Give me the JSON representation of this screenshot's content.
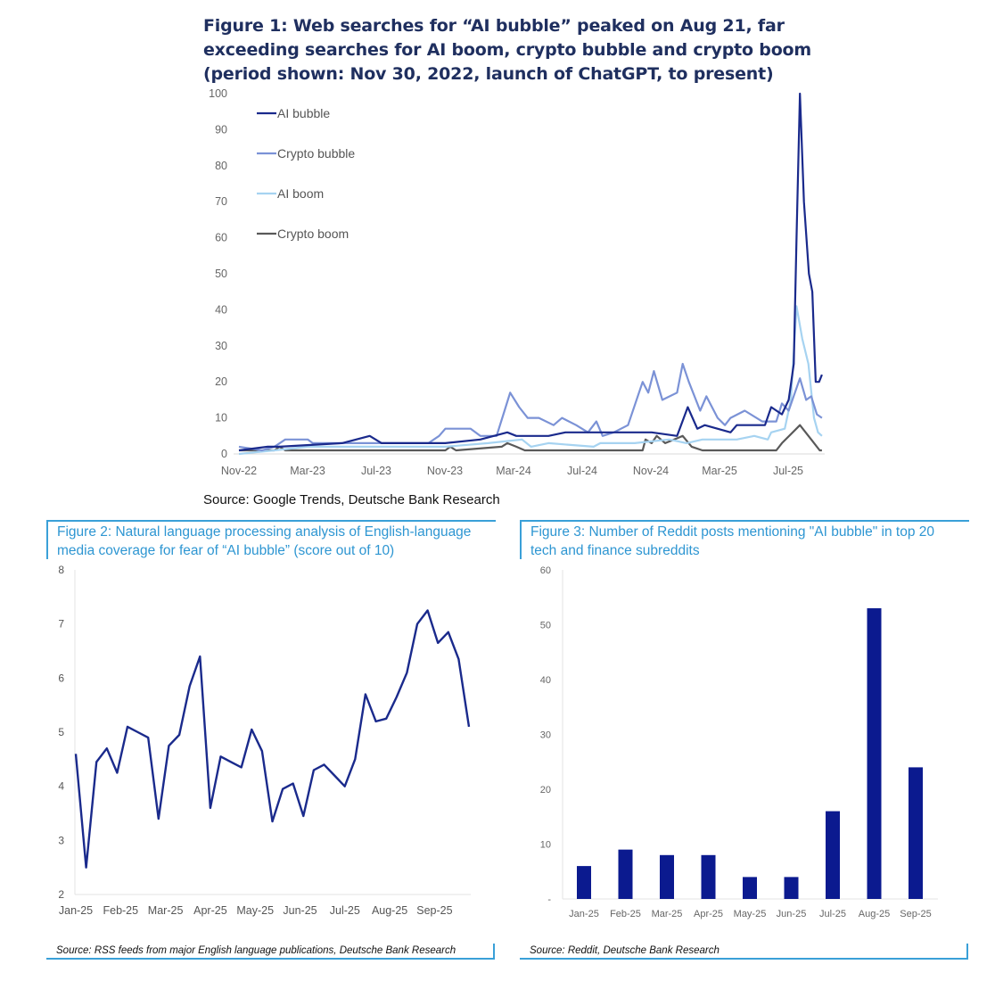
{
  "figure1": {
    "title": "Figure 1: Web searches for “AI bubble” peaked on Aug 21, far exceeding searches for AI boom, crypto bubble and crypto boom (period shown: Nov 30, 2022, launch of ChatGPT, to present)",
    "source": "Source: Google Trends, Deutsche Bank Research"
  },
  "figure2": {
    "title": "Figure 2: Natural language processing analysis of English-language media coverage for fear of “AI bubble” (score out of 10)",
    "source": "Source: RSS feeds from major English language publications, Deutsche Bank Research"
  },
  "figure3": {
    "title": "Figure 3: Number of Reddit posts mentioning \"AI bubble\" in top 20 tech and finance subreddits",
    "source": "Source: Reddit, Deutsche Bank Research"
  },
  "chart_data": [
    {
      "type": "line",
      "ylim": [
        0,
        100
      ],
      "yticks": [
        "0",
        "10",
        "20",
        "30",
        "40",
        "50",
        "60",
        "70",
        "80",
        "90",
        "100"
      ],
      "xticks": [
        "Nov-22",
        "Mar-23",
        "Jul-23",
        "Nov-23",
        "Mar-24",
        "Jul-24",
        "Nov-24",
        "Mar-25",
        "Jul-25"
      ],
      "x_start": "2022-11-30",
      "legend": "top-left",
      "grid": false,
      "series": [
        {
          "name": "AI bubble",
          "color": "#1a2a8c",
          "points": [
            [
              "2022-11-30",
              1
            ],
            [
              "2023-01-20",
              2
            ],
            [
              "2023-02-10",
              2
            ],
            [
              "2023-06-01",
              3
            ],
            [
              "2023-07-20",
              5
            ],
            [
              "2023-08-10",
              3
            ],
            [
              "2023-12-01",
              3
            ],
            [
              "2024-02-01",
              4
            ],
            [
              "2024-03-20",
              6
            ],
            [
              "2024-04-05",
              5
            ],
            [
              "2024-06-01",
              5
            ],
            [
              "2024-07-01",
              6
            ],
            [
              "2024-09-01",
              6
            ],
            [
              "2024-12-01",
              6
            ],
            [
              "2025-01-15",
              5
            ],
            [
              "2025-02-03",
              13
            ],
            [
              "2025-02-20",
              7
            ],
            [
              "2025-03-05",
              8
            ],
            [
              "2025-04-20",
              6
            ],
            [
              "2025-05-01",
              8
            ],
            [
              "2025-06-20",
              8
            ],
            [
              "2025-07-01",
              13
            ],
            [
              "2025-07-20",
              11
            ],
            [
              "2025-08-01",
              15
            ],
            [
              "2025-08-10",
              25
            ],
            [
              "2025-08-15",
              60
            ],
            [
              "2025-08-21",
              100
            ],
            [
              "2025-08-28",
              70
            ],
            [
              "2025-09-06",
              50
            ],
            [
              "2025-09-12",
              45
            ],
            [
              "2025-09-18",
              20
            ],
            [
              "2025-09-24",
              20
            ],
            [
              "2025-09-29",
              22
            ]
          ]
        },
        {
          "name": "Crypto bubble",
          "color": "#7b92d6",
          "points": [
            [
              "2022-11-30",
              2
            ],
            [
              "2023-01-10",
              1
            ],
            [
              "2023-02-01",
              2
            ],
            [
              "2023-02-20",
              4
            ],
            [
              "2023-04-01",
              4
            ],
            [
              "2023-04-10",
              3
            ],
            [
              "2023-11-01",
              3
            ],
            [
              "2023-11-20",
              5
            ],
            [
              "2023-12-01",
              7
            ],
            [
              "2024-01-15",
              7
            ],
            [
              "2024-02-01",
              5
            ],
            [
              "2024-03-01",
              5
            ],
            [
              "2024-03-15",
              12
            ],
            [
              "2024-03-25",
              17
            ],
            [
              "2024-04-10",
              13
            ],
            [
              "2024-04-25",
              10
            ],
            [
              "2024-05-15",
              10
            ],
            [
              "2024-06-10",
              8
            ],
            [
              "2024-06-25",
              10
            ],
            [
              "2024-07-20",
              8
            ],
            [
              "2024-08-10",
              6
            ],
            [
              "2024-08-25",
              9
            ],
            [
              "2024-09-05",
              5
            ],
            [
              "2024-09-25",
              6
            ],
            [
              "2024-10-20",
              8
            ],
            [
              "2024-11-15",
              20
            ],
            [
              "2024-11-25",
              17
            ],
            [
              "2024-12-05",
              23
            ],
            [
              "2024-12-20",
              15
            ],
            [
              "2025-01-15",
              17
            ],
            [
              "2025-01-25",
              25
            ],
            [
              "2025-02-05",
              20
            ],
            [
              "2025-02-25",
              12
            ],
            [
              "2025-03-08",
              16
            ],
            [
              "2025-03-28",
              10
            ],
            [
              "2025-04-10",
              8
            ],
            [
              "2025-04-20",
              10
            ],
            [
              "2025-05-15",
              12
            ],
            [
              "2025-06-15",
              9
            ],
            [
              "2025-07-10",
              9
            ],
            [
              "2025-07-20",
              14
            ],
            [
              "2025-08-01",
              12
            ],
            [
              "2025-08-21",
              21
            ],
            [
              "2025-09-01",
              15
            ],
            [
              "2025-09-10",
              16
            ],
            [
              "2025-09-20",
              11
            ],
            [
              "2025-09-29",
              10
            ]
          ]
        },
        {
          "name": "AI boom",
          "color": "#a6d3f1",
          "points": [
            [
              "2022-11-30",
              0
            ],
            [
              "2023-02-01",
              1
            ],
            [
              "2023-04-01",
              2
            ],
            [
              "2023-12-01",
              2
            ],
            [
              "2024-02-15",
              3
            ],
            [
              "2024-04-15",
              4
            ],
            [
              "2024-05-01",
              2
            ],
            [
              "2024-06-01",
              3
            ],
            [
              "2024-08-20",
              2
            ],
            [
              "2024-09-01",
              3
            ],
            [
              "2024-11-01",
              3
            ],
            [
              "2025-01-01",
              4
            ],
            [
              "2025-02-01",
              3
            ],
            [
              "2025-03-01",
              4
            ],
            [
              "2025-05-01",
              4
            ],
            [
              "2025-06-01",
              5
            ],
            [
              "2025-06-25",
              4
            ],
            [
              "2025-07-01",
              6
            ],
            [
              "2025-07-25",
              7
            ],
            [
              "2025-08-05",
              15
            ],
            [
              "2025-08-15",
              41
            ],
            [
              "2025-08-25",
              32
            ],
            [
              "2025-09-05",
              25
            ],
            [
              "2025-09-15",
              10
            ],
            [
              "2025-09-22",
              6
            ],
            [
              "2025-09-29",
              5
            ]
          ]
        },
        {
          "name": "Crypto boom",
          "color": "#595959",
          "points": [
            [
              "2022-11-30",
              1
            ],
            [
              "2023-02-01",
              1
            ],
            [
              "2023-02-10",
              2
            ],
            [
              "2023-02-20",
              1
            ],
            [
              "2023-12-01",
              1
            ],
            [
              "2023-12-10",
              2
            ],
            [
              "2023-12-20",
              1
            ],
            [
              "2024-03-10",
              2
            ],
            [
              "2024-03-20",
              3
            ],
            [
              "2024-04-05",
              2
            ],
            [
              "2024-04-20",
              1
            ],
            [
              "2024-11-15",
              1
            ],
            [
              "2024-11-20",
              4
            ],
            [
              "2024-12-01",
              3
            ],
            [
              "2024-12-10",
              5
            ],
            [
              "2024-12-25",
              3
            ],
            [
              "2025-01-10",
              4
            ],
            [
              "2025-01-25",
              5
            ],
            [
              "2025-02-10",
              2
            ],
            [
              "2025-03-01",
              1
            ],
            [
              "2025-07-10",
              1
            ],
            [
              "2025-07-20",
              3
            ],
            [
              "2025-08-21",
              8
            ],
            [
              "2025-09-10",
              4
            ],
            [
              "2025-09-25",
              1
            ],
            [
              "2025-09-29",
              1
            ]
          ]
        }
      ]
    },
    {
      "type": "line",
      "ylim": [
        2,
        8
      ],
      "yticks": [
        "2",
        "3",
        "4",
        "5",
        "6",
        "7",
        "8"
      ],
      "xticks": [
        "Jan-25",
        "Feb-25",
        "Mar-25",
        "Apr-25",
        "May-25",
        "Jun-25",
        "Jul-25",
        "Aug-25",
        "Sep-25"
      ],
      "grid": false,
      "color": "#1a2a8c",
      "values": [
        4.6,
        2.5,
        4.45,
        4.7,
        4.25,
        5.1,
        5.0,
        4.9,
        3.4,
        4.75,
        4.95,
        5.85,
        6.4,
        3.6,
        4.55,
        4.45,
        4.35,
        5.05,
        4.65,
        3.35,
        3.95,
        4.05,
        3.45,
        4.3,
        4.4,
        4.2,
        4.0,
        4.5,
        5.7,
        5.2,
        5.25,
        5.65,
        6.1,
        7.0,
        7.25,
        6.65,
        6.85,
        6.35,
        5.1
      ]
    },
    {
      "type": "bar",
      "ylim": [
        0,
        60
      ],
      "yticks": [
        "-",
        "10",
        "20",
        "30",
        "40",
        "50",
        "60"
      ],
      "categories": [
        "Jan-25",
        "Feb-25",
        "Mar-25",
        "Apr-25",
        "May-25",
        "Jun-25",
        "Jul-25",
        "Aug-25",
        "Sep-25"
      ],
      "values": [
        6,
        9,
        8,
        8,
        4,
        4,
        16,
        53,
        24
      ],
      "color": "#0b1a8f",
      "grid": false
    }
  ]
}
